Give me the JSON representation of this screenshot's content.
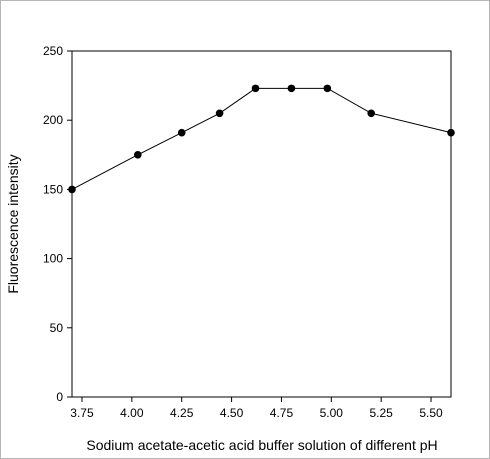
{
  "chart_data": {
    "type": "line",
    "title": "",
    "xlabel": "Sodium acetate-acetic acid buffer solution of different pH",
    "ylabel": "Fluorescence intensity",
    "xlim": [
      3.7,
      5.6
    ],
    "ylim": [
      0,
      250
    ],
    "x_ticks": [
      "3.75",
      "4.00",
      "4.25",
      "4.50",
      "4.75",
      "5.00",
      "5.25",
      "5.50"
    ],
    "x_tick_values": [
      3.75,
      4.0,
      4.25,
      4.5,
      4.75,
      5.0,
      5.25,
      5.5
    ],
    "y_ticks": [
      "0",
      "50",
      "100",
      "150",
      "200",
      "250"
    ],
    "y_tick_values": [
      0,
      50,
      100,
      150,
      200,
      250
    ],
    "grid": false,
    "legend": "none",
    "series": [
      {
        "x": [
          3.7,
          4.03,
          4.25,
          4.44,
          4.62,
          4.8,
          4.98,
          5.2,
          5.6
        ],
        "y": [
          150,
          175,
          191,
          205,
          223,
          223,
          223,
          205,
          191
        ]
      }
    ]
  }
}
